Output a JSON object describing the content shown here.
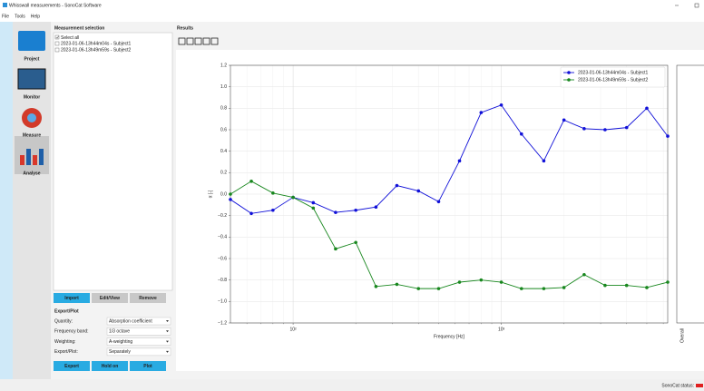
{
  "window": {
    "title": "Whisswall measurements - SonoCat Software",
    "menu": [
      "File",
      "Tools",
      "Help"
    ]
  },
  "sidebar": [
    "Project",
    "Monitor",
    "Measure",
    "Analyse"
  ],
  "measurement_selection": {
    "title": "Measurement selection",
    "select_all": "Select all",
    "items": [
      "2023-01-06-13h44m04s - Subject1",
      "2023-01-06-13h49m59s - Subject2"
    ],
    "buttons": [
      "Import",
      "Edit/View",
      "Remove"
    ]
  },
  "export_plot": {
    "title": "Export/Plot",
    "fields": [
      {
        "label": "Quantity:",
        "value": "Absorption coefficient"
      },
      {
        "label": "Frequency band:",
        "value": "1/3 octave"
      },
      {
        "label": "Weighting:",
        "value": "A-weighting"
      },
      {
        "label": "Export/Plot:",
        "value": "Separately"
      }
    ],
    "buttons": [
      "Export",
      "Hold on",
      "Plot"
    ]
  },
  "results": {
    "title": "Results",
    "overall_label": "Overall"
  },
  "status": {
    "label": "SonoCat status:"
  },
  "chart_data": {
    "type": "line",
    "xlabel": "Frequency [Hz]",
    "ylabel": "α [-]",
    "x": [
      50,
      63,
      80,
      100,
      125,
      160,
      200,
      250,
      315,
      400,
      500,
      630,
      800,
      1000,
      1250,
      1600,
      2000,
      2500,
      3150,
      4000,
      5000,
      6300
    ],
    "series": [
      {
        "name": "2023-01-06-13h44m04s - Subject1",
        "color": "#1010d8",
        "values": [
          -0.05,
          -0.18,
          -0.15,
          -0.03,
          -0.08,
          -0.17,
          -0.15,
          -0.12,
          0.08,
          0.03,
          -0.07,
          0.31,
          0.76,
          0.83,
          0.56,
          0.31,
          0.69,
          0.61,
          0.6,
          0.62,
          0.8,
          0.54
        ]
      },
      {
        "name": "2023-01-06-13h49m59s - Subject2",
        "color": "#18871e",
        "values": [
          0.0,
          0.12,
          0.01,
          -0.03,
          -0.13,
          -0.51,
          -0.45,
          -0.86,
          -0.84,
          -0.88,
          -0.88,
          -0.82,
          -0.8,
          -0.82,
          -0.88,
          -0.88,
          -0.87,
          -0.75,
          -0.85,
          -0.85,
          -0.87,
          -0.82
        ]
      }
    ],
    "xscale": "log",
    "xlim": [
      50,
      6300
    ],
    "ylim": [
      -1.2,
      1.2
    ],
    "xticks": [
      {
        "value": 100,
        "label": "10²"
      },
      {
        "value": 1000,
        "label": "10³"
      }
    ],
    "x_minor_ticks": [
      60,
      70,
      80,
      90,
      200,
      300,
      400,
      500,
      600,
      700,
      800,
      900,
      2000,
      3000,
      4000,
      5000,
      6000
    ],
    "yticks": [
      1.2,
      {
        "value": 1,
        "label": "1.0"
      },
      0.8,
      0.6,
      0.4,
      0.2,
      {
        "value": 0,
        "label": "0.0"
      },
      {
        "value": -0.2,
        "label": "−0.2"
      },
      {
        "value": -0.4,
        "label": "−0.4"
      },
      {
        "value": -0.6,
        "label": "−0.6"
      },
      {
        "value": -0.8,
        "label": "−0.8"
      },
      {
        "value": -1,
        "label": "−1.0"
      },
      {
        "value": -1.2,
        "label": "−1.2"
      }
    ],
    "grid": true,
    "legend": "upper right"
  }
}
